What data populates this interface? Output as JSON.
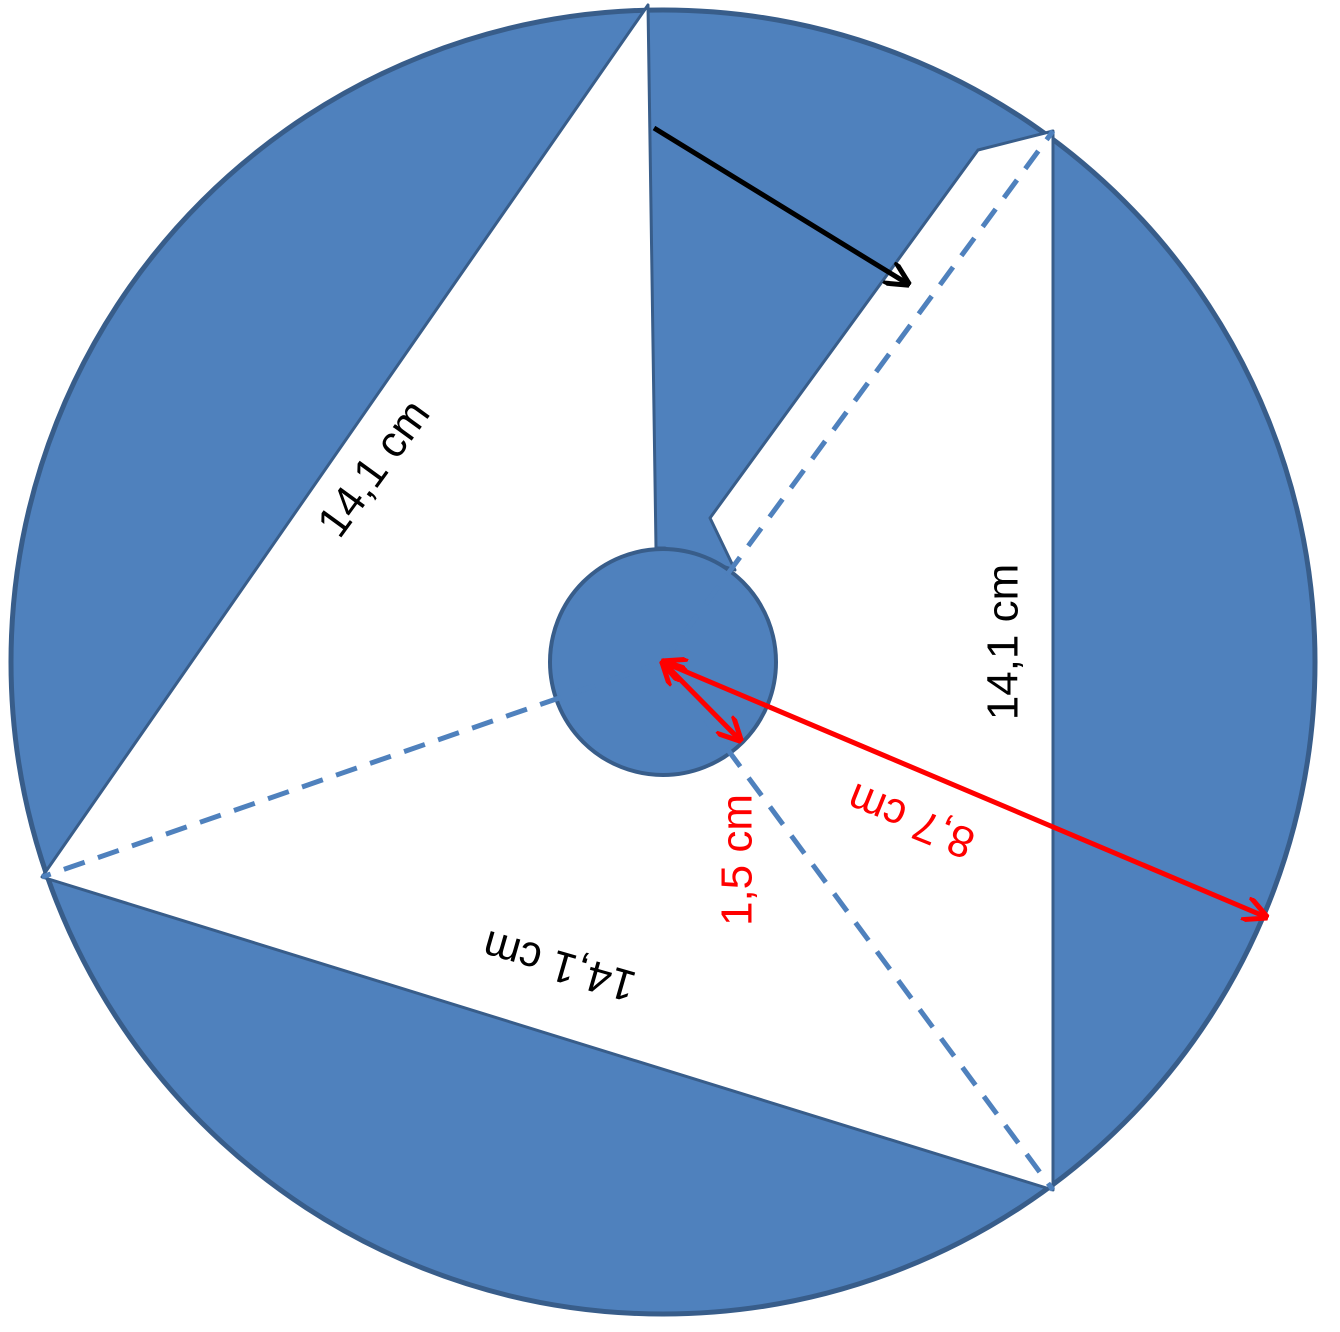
{
  "diagram": {
    "labels": {
      "side_left": "14,1 cm",
      "side_right": "14,1 cm",
      "side_bottom": "14,1 cm",
      "inner_radius": "1,5 cm",
      "outer_radius": "8,7 cm"
    },
    "colors": {
      "fill": "#4f81bd",
      "outline": "#385d8a",
      "dashed": "#4f81bd",
      "measure": "#ff0000",
      "arrow": "#000000",
      "text": "#000000",
      "background": "#ffffff"
    }
  }
}
